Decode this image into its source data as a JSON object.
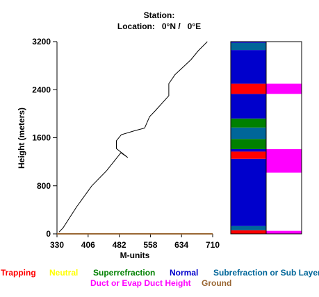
{
  "header": {
    "station": "Station:",
    "location": "Location:   0°N /   0°E"
  },
  "legend": {
    "items": [
      {
        "label": "Trapping",
        "color": "#ff0000"
      },
      {
        "label": "Neutral",
        "color": "#ffff00"
      },
      {
        "label": "Superrefraction",
        "color": "#008000"
      },
      {
        "label": "Normal",
        "color": "#0000cc"
      },
      {
        "label": "Subrefraction or Sub Layer",
        "color": "#006699"
      },
      {
        "label": "Duct or Evap Duct Height",
        "color": "#ff00ff"
      },
      {
        "label": "Ground",
        "color": "#996633"
      }
    ]
  },
  "chart_data": {
    "type": "line",
    "xlabel": "M-units",
    "ylabel": "Height (meters)",
    "xlim": [
      330,
      710
    ],
    "ylim": [
      0,
      3200
    ],
    "xticks": [
      330,
      406,
      482,
      558,
      634,
      710
    ],
    "yticks": [
      0,
      800,
      1600,
      2400,
      3200
    ],
    "series": [
      {
        "color": "#000000",
        "x": [
          335,
          345,
          378,
          415,
          451,
          486,
          503,
          475,
          475,
          487,
          521,
          544,
          556,
          570,
          603,
          603,
          618,
          657,
          675,
          697
        ],
        "y": [
          30,
          100,
          450,
          800,
          1050,
          1350,
          1270,
          1420,
          1550,
          1650,
          1720,
          1760,
          1950,
          2050,
          2300,
          2500,
          2650,
          2900,
          3050,
          3200
        ]
      }
    ],
    "ground": {
      "color": "#996633",
      "height": 0
    },
    "layer_column": {
      "ylim": [
        0,
        3200
      ],
      "colors": {
        "trapping": "#ff0000",
        "superrefraction": "#008000",
        "normal": "#0000cc",
        "subrefraction": "#006699"
      },
      "segments": [
        {
          "from": 0,
          "to": 60,
          "type": "trapping"
        },
        {
          "from": 60,
          "to": 130,
          "type": "subrefraction"
        },
        {
          "from": 130,
          "to": 1250,
          "type": "normal"
        },
        {
          "from": 1250,
          "to": 1370,
          "type": "trapping"
        },
        {
          "from": 1370,
          "to": 1410,
          "type": "normal"
        },
        {
          "from": 1410,
          "to": 1580,
          "type": "superrefraction"
        },
        {
          "from": 1580,
          "to": 1770,
          "type": "subrefraction"
        },
        {
          "from": 1770,
          "to": 1920,
          "type": "superrefraction"
        },
        {
          "from": 1920,
          "to": 2330,
          "type": "normal"
        },
        {
          "from": 2330,
          "to": 2500,
          "type": "trapping"
        },
        {
          "from": 2500,
          "to": 3060,
          "type": "normal"
        },
        {
          "from": 3060,
          "to": 3180,
          "type": "subrefraction"
        },
        {
          "from": 3180,
          "to": 3200,
          "type": "normal"
        }
      ]
    },
    "duct_column": {
      "color": "#ff00ff",
      "ducts": [
        {
          "from": 0,
          "to": 50
        },
        {
          "from": 1020,
          "to": 1410
        },
        {
          "from": 2330,
          "to": 2500
        }
      ]
    }
  }
}
